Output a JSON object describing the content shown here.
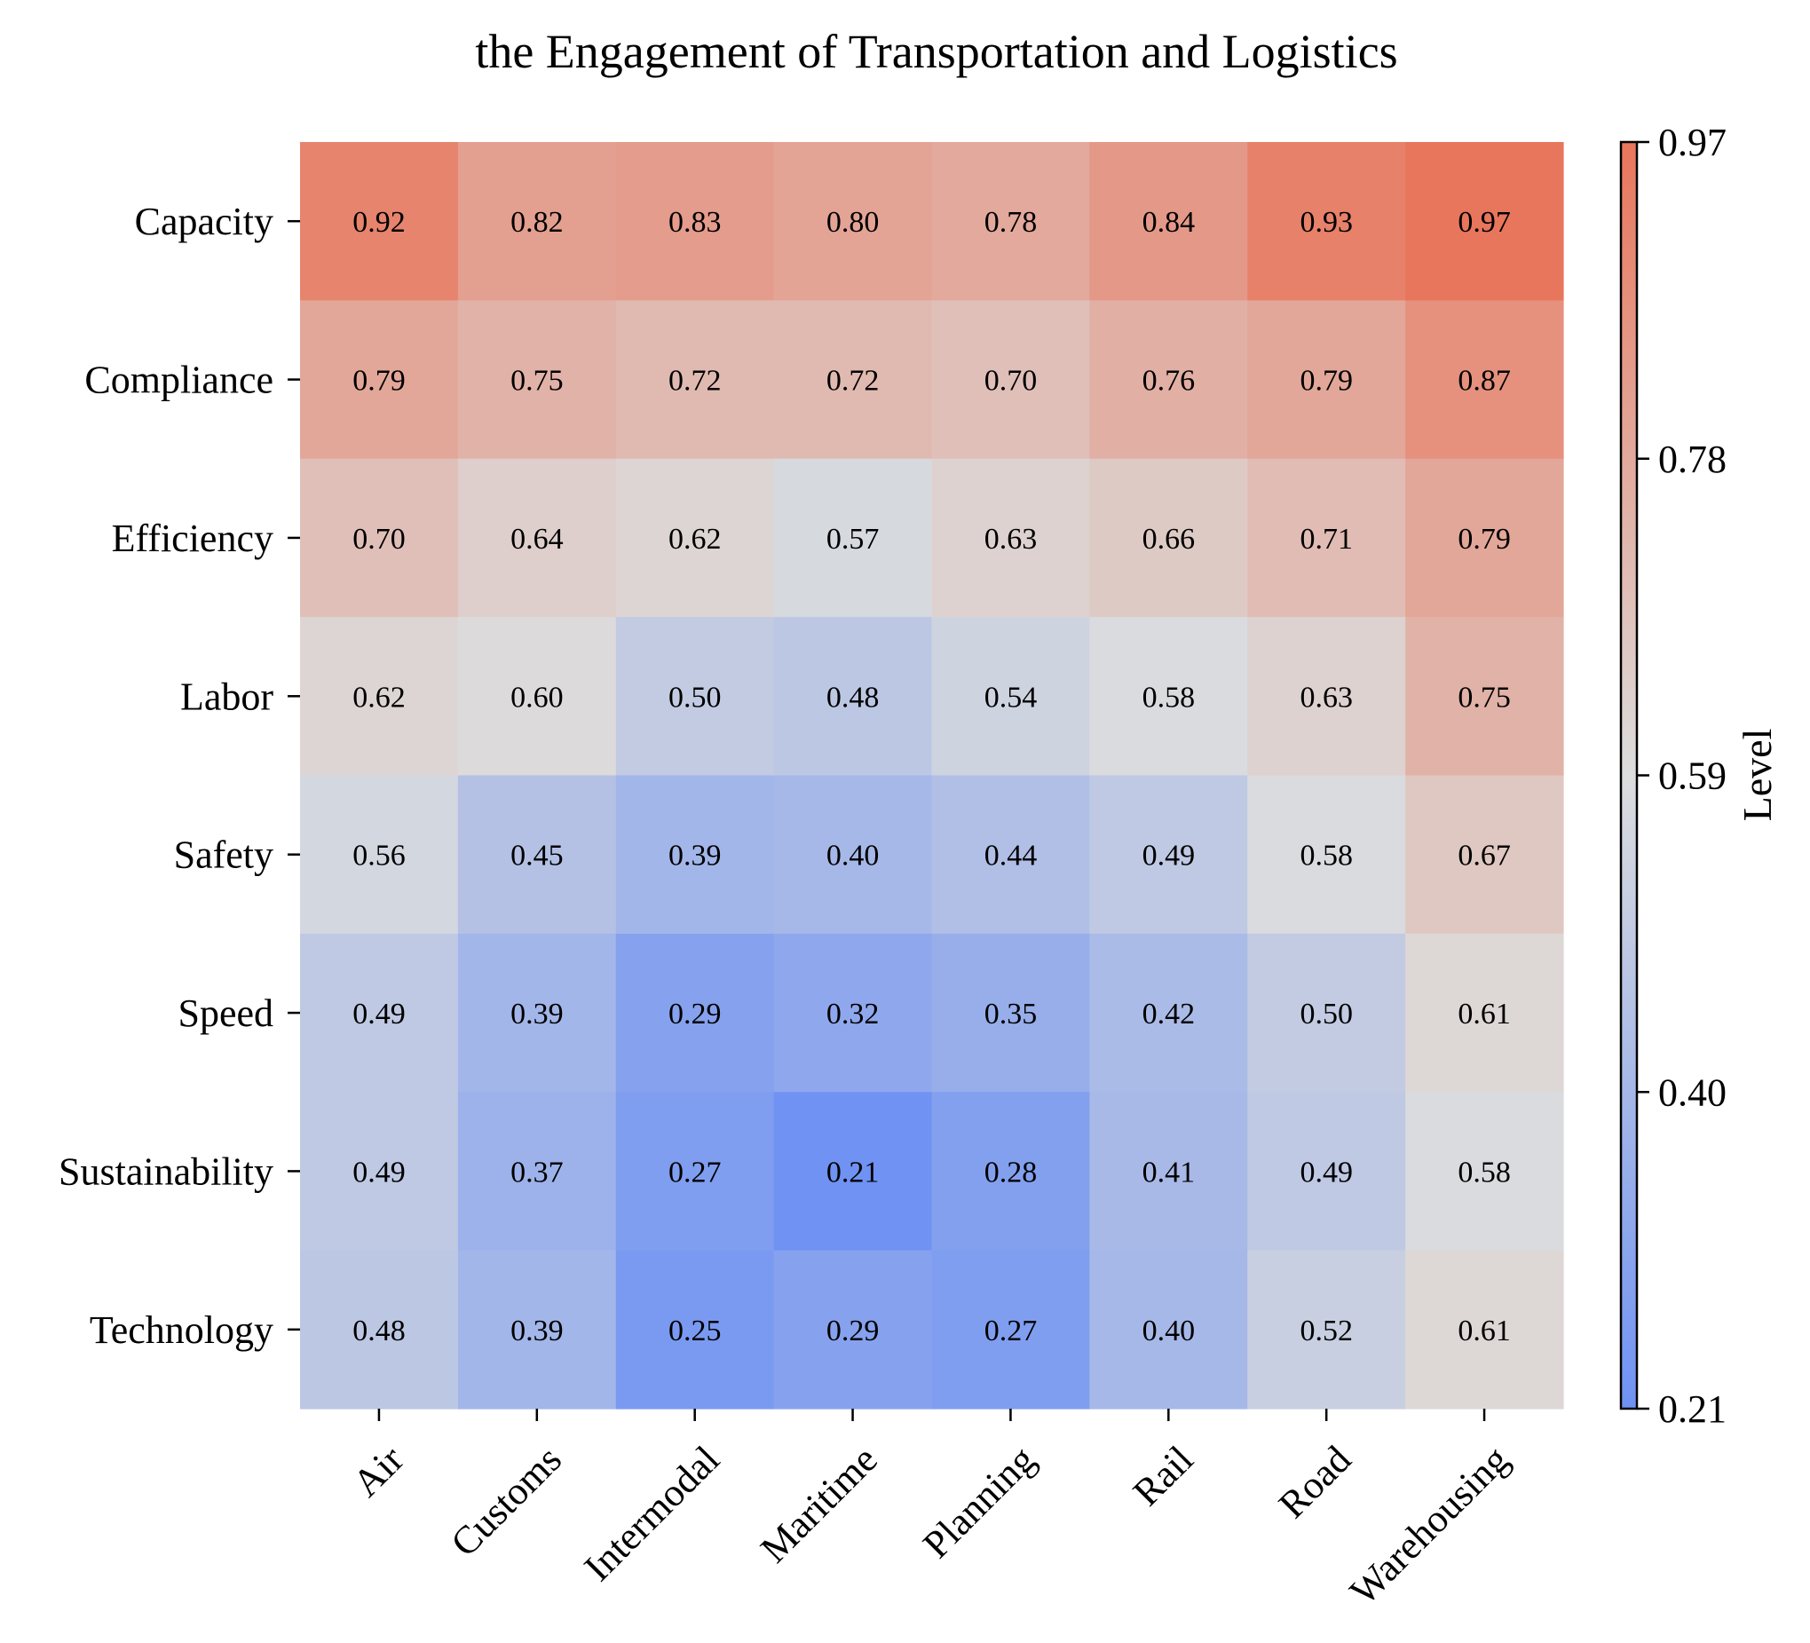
{
  "chart_data": {
    "type": "heatmap",
    "title": "the Engagement of Transportation and Logistics",
    "x_categories": [
      "Air",
      "Customs",
      "Intermodal",
      "Maritime",
      "Planning",
      "Rail",
      "Road",
      "Warehousing"
    ],
    "y_categories": [
      "Capacity",
      "Compliance",
      "Efficiency",
      "Labor",
      "Safety",
      "Speed",
      "Sustainability",
      "Technology"
    ],
    "values": [
      [
        0.92,
        0.82,
        0.83,
        0.8,
        0.78,
        0.84,
        0.93,
        0.97
      ],
      [
        0.79,
        0.75,
        0.72,
        0.72,
        0.7,
        0.76,
        0.79,
        0.87
      ],
      [
        0.7,
        0.64,
        0.62,
        0.57,
        0.63,
        0.66,
        0.71,
        0.79
      ],
      [
        0.62,
        0.6,
        0.5,
        0.48,
        0.54,
        0.58,
        0.63,
        0.75
      ],
      [
        0.56,
        0.45,
        0.39,
        0.4,
        0.44,
        0.49,
        0.58,
        0.67
      ],
      [
        0.49,
        0.39,
        0.29,
        0.32,
        0.35,
        0.42,
        0.5,
        0.61
      ],
      [
        0.49,
        0.37,
        0.27,
        0.21,
        0.28,
        0.41,
        0.49,
        0.58
      ],
      [
        0.48,
        0.39,
        0.25,
        0.29,
        0.27,
        0.4,
        0.52,
        0.61
      ]
    ],
    "value_format": "0.00",
    "colorbar": {
      "label": "Level",
      "min": 0.21,
      "max": 0.97,
      "ticks": [
        "0.21",
        "0.40",
        "0.59",
        "0.78",
        "0.97"
      ],
      "colormap": "coolwarm",
      "colors": {
        "low": "#6f92f3",
        "mid": "#dcdddd",
        "high": "#e8765c"
      }
    },
    "legend": "none",
    "grid": false
  }
}
